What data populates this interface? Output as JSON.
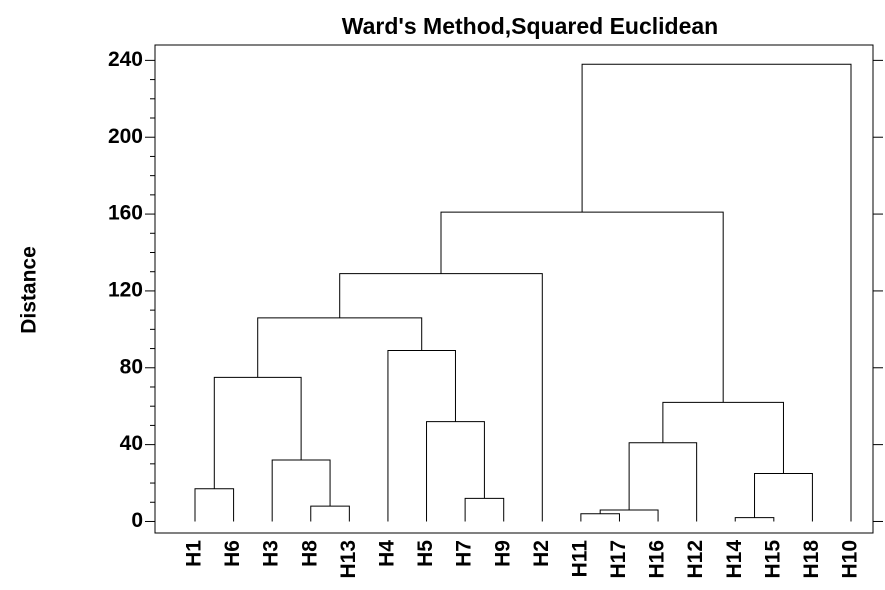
{
  "chart_data": {
    "type": "dendrogram",
    "title": "Ward's Method,Squared Euclidean",
    "y_label": "Distance",
    "ylim": [
      -6,
      248
    ],
    "yticks": [
      0,
      40,
      80,
      120,
      160,
      200,
      240
    ],
    "tree": {
      "height": 238,
      "children": [
        {
          "height": 161,
          "children": [
            {
              "height": 129,
              "children": [
                {
                  "height": 106,
                  "children": [
                    {
                      "height": 75,
                      "children": [
                        {
                          "height": 17,
                          "children": [
                            {
                              "label": "H1"
                            },
                            {
                              "label": "H6"
                            }
                          ]
                        },
                        {
                          "height": 32,
                          "children": [
                            {
                              "label": "H3"
                            },
                            {
                              "height": 8,
                              "children": [
                                {
                                  "label": "H8"
                                },
                                {
                                  "label": "H13"
                                }
                              ]
                            }
                          ]
                        }
                      ]
                    },
                    {
                      "height": 89,
                      "children": [
                        {
                          "label": "H4"
                        },
                        {
                          "height": 52,
                          "children": [
                            {
                              "label": "H5"
                            },
                            {
                              "height": 12,
                              "children": [
                                {
                                  "label": "H7"
                                },
                                {
                                  "label": "H9"
                                }
                              ]
                            }
                          ]
                        }
                      ]
                    }
                  ]
                },
                {
                  "label": "H2"
                }
              ]
            },
            {
              "height": 62,
              "children": [
                {
                  "height": 41,
                  "children": [
                    {
                      "height": 6,
                      "children": [
                        {
                          "height": 4,
                          "children": [
                            {
                              "label": "H11"
                            },
                            {
                              "label": "H17"
                            }
                          ]
                        },
                        {
                          "label": "H16"
                        }
                      ]
                    },
                    {
                      "label": "H12"
                    }
                  ]
                },
                {
                  "height": 25,
                  "children": [
                    {
                      "height": 2,
                      "children": [
                        {
                          "label": "H14"
                        },
                        {
                          "label": "H15"
                        }
                      ]
                    },
                    {
                      "label": "H18"
                    }
                  ]
                }
              ]
            }
          ]
        },
        {
          "label": "H10"
        }
      ]
    }
  }
}
